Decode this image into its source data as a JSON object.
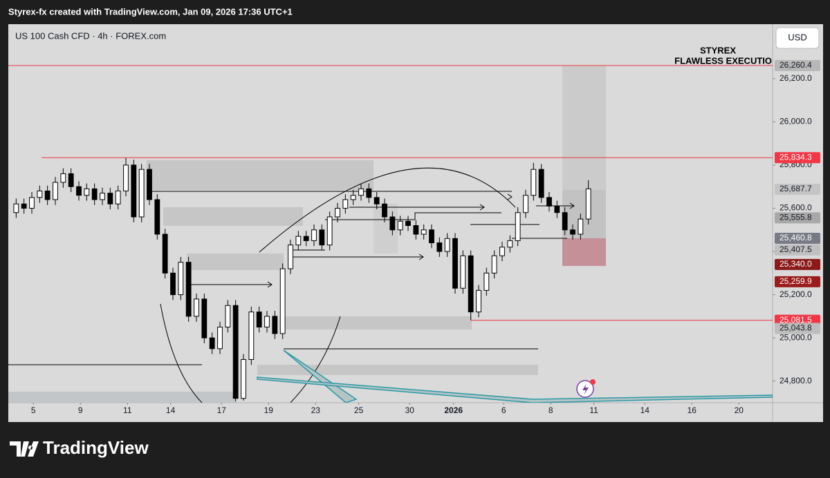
{
  "header": {
    "text": "Styrex-fx created with TradingView.com, Jan 09, 2026 17:36 UTC+1"
  },
  "footer": {
    "brand": "TradingView"
  },
  "chart_data": {
    "type": "candlestick",
    "title": "US 100 Cash CFD · 4h · FOREX.com",
    "currency": "USD",
    "annotation": [
      "STYREX",
      "FLAWLESS EXECUTIO"
    ],
    "up_color": "#ffffff",
    "down_color": "#000000",
    "xlim": [
      -1,
      96.5
    ],
    "xticks": [
      {
        "value": 2.2,
        "label": "5"
      },
      {
        "value": 8.2,
        "label": "9"
      },
      {
        "value": 14.2,
        "label": "11"
      },
      {
        "value": 19.7,
        "label": "14"
      },
      {
        "value": 26.2,
        "label": "17"
      },
      {
        "value": 32.2,
        "label": "19"
      },
      {
        "value": 38.2,
        "label": "23"
      },
      {
        "value": 43.7,
        "label": "25"
      },
      {
        "value": 50.2,
        "label": "30"
      },
      {
        "value": 55.8,
        "label": "2026"
      },
      {
        "value": 62.2,
        "label": "6"
      },
      {
        "value": 68.2,
        "label": "8"
      },
      {
        "value": 73.7,
        "label": "11"
      },
      {
        "value": 80.2,
        "label": "14"
      },
      {
        "value": 86.2,
        "label": "16"
      },
      {
        "value": 92.2,
        "label": "20"
      }
    ],
    "ylim": [
      24700,
      26452
    ],
    "yticks": [
      {
        "value": 24800,
        "label": "24,800.0"
      },
      {
        "value": 25000,
        "label": "25,000.0"
      },
      {
        "value": 25200,
        "label": "25,200.0"
      },
      {
        "value": 25400,
        "label": "25,400.0"
      },
      {
        "value": 25600,
        "label": "25,600.0"
      },
      {
        "value": 25800,
        "label": "25,800.0"
      },
      {
        "value": 26000,
        "label": "26,000.0"
      },
      {
        "value": 26200,
        "label": "26,200.0"
      }
    ],
    "open": [
      25580,
      25620,
      25600,
      25650,
      25680,
      25640,
      25720,
      25760,
      25700,
      25660,
      25690,
      25640,
      25670,
      25620,
      25680,
      25800,
      25560,
      25780,
      25640,
      25480,
      25300,
      25200,
      25350,
      25100,
      25180,
      25000,
      24950,
      25050,
      25150,
      24720,
      24900,
      25120,
      25050,
      25100,
      25020,
      25320,
      25430,
      25470,
      25450,
      25500,
      25430,
      25560,
      25600,
      25640,
      25660,
      25690,
      25650,
      25620,
      25560,
      25500,
      25540,
      25520,
      25480,
      25500,
      25440,
      25400,
      25460,
      25230,
      25380,
      25120,
      25220,
      25300,
      25380,
      25420,
      25450,
      25580,
      25660,
      25780,
      25650,
      25610,
      25580,
      25500,
      25480,
      25550
    ],
    "high": [
      25645,
      25645,
      25675,
      25705,
      25705,
      25745,
      25785,
      25785,
      25725,
      25715,
      25715,
      25695,
      25695,
      25705,
      25834,
      25825,
      25805,
      25805,
      25665,
      25505,
      25325,
      25375,
      25375,
      25205,
      25205,
      25025,
      25075,
      25175,
      25175,
      24925,
      25145,
      25145,
      25125,
      25125,
      25345,
      25455,
      25495,
      25495,
      25525,
      25525,
      25585,
      25625,
      25665,
      25685,
      25715,
      25715,
      25675,
      25645,
      25585,
      25565,
      25565,
      25545,
      25525,
      25525,
      25465,
      25485,
      25485,
      25405,
      25405,
      25245,
      25325,
      25405,
      25445,
      25475,
      25605,
      25685,
      25810,
      25805,
      25675,
      25635,
      25605,
      25525,
      25575,
      25730
    ],
    "low": [
      25555,
      25575,
      25575,
      25625,
      25615,
      25615,
      25695,
      25675,
      25635,
      25635,
      25615,
      25615,
      25595,
      25595,
      25655,
      25535,
      25535,
      25615,
      25455,
      25275,
      25175,
      25175,
      25075,
      25075,
      24975,
      24925,
      24925,
      25025,
      24705,
      24710,
      24875,
      25025,
      25025,
      24995,
      24995,
      25295,
      25405,
      25425,
      25425,
      25405,
      25405,
      25535,
      25575,
      25615,
      25635,
      25625,
      25595,
      25535,
      25475,
      25475,
      25495,
      25455,
      25455,
      25415,
      25375,
      25375,
      25205,
      25205,
      25082,
      25095,
      25195,
      25275,
      25355,
      25395,
      25425,
      25555,
      25635,
      25625,
      25585,
      25555,
      25475,
      25455,
      25455,
      25525
    ],
    "close": [
      25620,
      25600,
      25650,
      25680,
      25640,
      25720,
      25760,
      25700,
      25660,
      25690,
      25640,
      25670,
      25620,
      25680,
      25800,
      25560,
      25780,
      25640,
      25480,
      25300,
      25200,
      25350,
      25100,
      25180,
      25000,
      24950,
      25050,
      25150,
      24720,
      24900,
      25120,
      25050,
      25100,
      25020,
      25320,
      25430,
      25470,
      25450,
      25500,
      25430,
      25560,
      25600,
      25640,
      25660,
      25690,
      25650,
      25620,
      25560,
      25500,
      25540,
      25520,
      25480,
      25500,
      25440,
      25400,
      25460,
      25230,
      25380,
      25120,
      25220,
      25300,
      25380,
      25420,
      25450,
      25580,
      25660,
      25780,
      25650,
      25610,
      25580,
      25500,
      25480,
      25550,
      25690
    ],
    "price_labels": [
      {
        "value": 26260.4,
        "label": "26,260.4",
        "bg": "#b8b8b8",
        "fg": "#131722",
        "line_color": "#f23645"
      },
      {
        "value": 25834.3,
        "label": "25,834.3",
        "bg": "#f23645",
        "fg": "#ffffff",
        "line_color": "#f23645"
      },
      {
        "value": 25687.7,
        "label": "25,687.7",
        "bg": "#c4c4c4",
        "fg": "#131722"
      },
      {
        "value": 25555.8,
        "label": "25,555.8",
        "bg": "#a8a8a8",
        "fg": "#131722"
      },
      {
        "value": 25460.8,
        "label": "25,460.8",
        "bg": "#787b86",
        "fg": "#ffffff"
      },
      {
        "value": 25407.5,
        "label": "25,407.5",
        "bg": "#c0c0c0",
        "fg": "#131722"
      },
      {
        "value": 25340.0,
        "label": "25,340.0",
        "bg": "#8b1a1a",
        "fg": "#ffffff"
      },
      {
        "value": 25259.9,
        "label": "25,259.9",
        "bg": "#9b1c1c",
        "fg": "#ffffff"
      },
      {
        "value": 25081.5,
        "label": "25,081.5",
        "bg": "#f23645",
        "fg": "#ffffff",
        "line_color": "#f23645"
      },
      {
        "value": 25043.8,
        "label": "25,043.8",
        "bg": "#bdbdbd",
        "fg": "#131722"
      }
    ]
  }
}
